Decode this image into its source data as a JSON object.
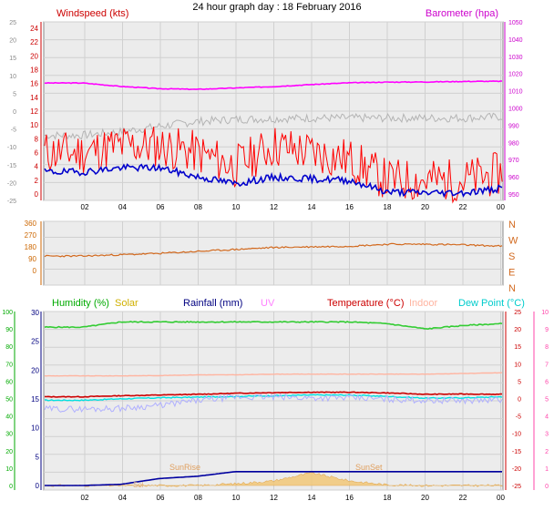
{
  "title": "24 hour graph day : 18 February 2016",
  "x_ticks": [
    "02",
    "04",
    "06",
    "08",
    "10",
    "12",
    "14",
    "16",
    "18",
    "20",
    "22",
    "00"
  ],
  "colors": {
    "wind": "#ff0000",
    "wind_avg": "#0000cc",
    "baro": "#ff00ff",
    "baro_grey": "#b4b4b4",
    "dir": "#d2691e",
    "humidity": "#33cc33",
    "solar": "#e0c000",
    "rain": "#0000a0",
    "uv": "#ff80ff",
    "temp": "#cc0000",
    "indoor": "#ffb4a0",
    "dew": "#00e0e0",
    "left_axis_green": "#00aa00",
    "right_axis_pink": "#ff44aa"
  },
  "chart_data": [
    {
      "type": "line",
      "panel": "wind-barometer",
      "title": "",
      "legend_left": "Windspeed (kts)",
      "legend_right": "Barometer (hpa)",
      "y_left_outer_ticks": [
        "25",
        "20",
        "15",
        "10",
        "5",
        "0",
        "-5",
        "-10",
        "-15",
        "-20",
        "-25"
      ],
      "y_left_inner_ticks": [
        "24",
        "22",
        "20",
        "18",
        "16",
        "14",
        "12",
        "10",
        "8",
        "6",
        "4",
        "2",
        "0"
      ],
      "y_right_ticks": [
        "1050",
        "1040",
        "1030",
        "1020",
        "1010",
        "1000",
        "990",
        "980",
        "970",
        "960",
        "950"
      ],
      "ylim_left": [
        0,
        25
      ],
      "ylim_right": [
        950,
        1050
      ],
      "x": [
        "02",
        "04",
        "06",
        "08",
        "10",
        "12",
        "14",
        "16",
        "18",
        "20",
        "22",
        "00"
      ],
      "series": [
        {
          "name": "Barometer (hpa)",
          "axis": "right",
          "values": [
            1014.5,
            1012.5,
            1011.2,
            1010.8,
            1011.6,
            1012.4,
            1013.6,
            1014.6,
            1015.0,
            1015.1,
            1015.4,
            1015.5
          ]
        },
        {
          "name": "",
          "axis": "left",
          "values": [
            11.5,
            12.0,
            12.8,
            13.5,
            13.8,
            13.9,
            14.0,
            14.0,
            14.0,
            14.0,
            14.0,
            14.2
          ]
        },
        {
          "name": "Windspeed (kts)",
          "axis": "left",
          "values": [
            6,
            7,
            7,
            6,
            4,
            7,
            6,
            5,
            2,
            2,
            2,
            3
          ]
        },
        {
          "name": "",
          "axis": "left",
          "values": [
            3.2,
            3.8,
            3.8,
            2.5,
            1.5,
            2.4,
            2.2,
            2.0,
            0.3,
            0.2,
            0.2,
            0.8
          ]
        }
      ]
    },
    {
      "type": "line",
      "panel": "wind-direction",
      "title": "",
      "y_left_ticks": [
        "360",
        "270",
        "180",
        "90",
        "0"
      ],
      "y_right_ticks": [
        "N",
        "W",
        "S",
        "E",
        "N"
      ],
      "ylim": [
        0,
        360
      ],
      "x": [
        "02",
        "04",
        "06",
        "08",
        "10",
        "12",
        "14",
        "16",
        "18",
        "20",
        "22",
        "00"
      ],
      "series": [
        {
          "name": "",
          "values": [
            110,
            120,
            130,
            145,
            160,
            175,
            180,
            185,
            200,
            200,
            195,
            185
          ]
        }
      ]
    },
    {
      "type": "line",
      "panel": "humidity-temperature",
      "title": "",
      "legend": [
        "Humidity (%)",
        "Solar",
        "Rainfall (mm)",
        "UV",
        "Temperature (°C)",
        "Indoor",
        "Dew Point (°C)"
      ],
      "y_left_outer_ticks": [
        "100",
        "90",
        "80",
        "70",
        "60",
        "50",
        "40",
        "30",
        "20",
        "10",
        "0"
      ],
      "y_left_inner_ticks": [
        "30",
        "25",
        "20",
        "15",
        "10",
        "5",
        "0"
      ],
      "y_right_inner_ticks": [
        "25",
        "20",
        "15",
        "10",
        "5",
        "0",
        "-5",
        "-10",
        "-15",
        "-20",
        "-25"
      ],
      "y_right_outer_ticks": [
        "10",
        "9",
        "8",
        "7",
        "6",
        "5",
        "4",
        "3",
        "2",
        "1",
        "0"
      ],
      "annotations": [
        "SunRise",
        "SunSet",
        "Sol"
      ],
      "x": [
        "02",
        "04",
        "06",
        "08",
        "10",
        "12",
        "14",
        "16",
        "18",
        "20",
        "22",
        "00"
      ],
      "series": [
        {
          "name": "Humidity (%)",
          "axis": "left_outer",
          "values": [
            91,
            94,
            94,
            94,
            94,
            94,
            94,
            94,
            93,
            90,
            92,
            93
          ]
        },
        {
          "name": "Indoor",
          "axis": "right_inner",
          "values": [
            6.5,
            6.5,
            6.6,
            6.8,
            6.8,
            7.0,
            7.0,
            7.0,
            7.0,
            7.0,
            7.2,
            7.4
          ]
        },
        {
          "name": "Temperature (°C)",
          "axis": "right_inner",
          "values": [
            0.5,
            0.8,
            1.0,
            1.2,
            1.5,
            1.7,
            1.8,
            1.8,
            1.6,
            1.2,
            1.3,
            1.2
          ]
        },
        {
          "name": "Dew Point (°C)",
          "axis": "right_inner",
          "values": [
            -0.5,
            -0.1,
            0.2,
            0.4,
            0.6,
            0.8,
            1.0,
            1.0,
            0.6,
            0.1,
            0.2,
            0.5
          ]
        },
        {
          "name": "",
          "axis": "right_inner",
          "values": [
            -3.0,
            -2.8,
            -2.0,
            -0.6,
            0.4,
            0.4,
            0.2,
            0.2,
            -0.2,
            -0.5,
            -0.6,
            -0.4
          ]
        },
        {
          "name": "Rainfall (mm)",
          "axis": "left_inner",
          "values": [
            0.0,
            0.2,
            1.2,
            1.6,
            2.4,
            2.4,
            2.4,
            2.4,
            2.4,
            2.4,
            2.4,
            2.4
          ]
        },
        {
          "name": "Solar",
          "axis": "left_inner",
          "values": [
            0,
            0,
            0,
            0,
            0.3,
            0.8,
            2.2,
            0.8,
            0.1,
            0,
            0,
            0
          ]
        }
      ]
    }
  ]
}
